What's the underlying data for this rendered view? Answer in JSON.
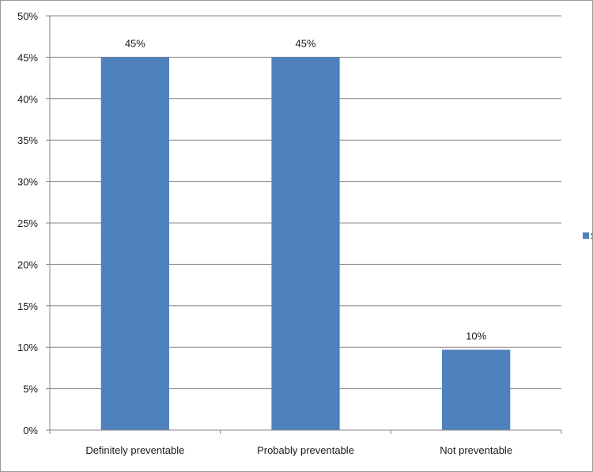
{
  "chart_data": {
    "type": "bar",
    "categories": [
      "Definitely preventable",
      "Probably preventable",
      "Not preventable"
    ],
    "series": [
      {
        "values": [
          45,
          45,
          9.7
        ]
      }
    ],
    "data_labels": [
      "45%",
      "45%",
      "10%"
    ],
    "y_ticks": [
      "0%",
      "5%",
      "10%",
      "15%",
      "20%",
      "25%",
      "30%",
      "35%",
      "40%",
      "45%",
      "50%"
    ],
    "ylim": [
      0,
      50
    ],
    "grid": true,
    "legend": {
      "position": "right",
      "text": "S"
    },
    "colors": {
      "bar": "#4f81bd",
      "grid": "#868686",
      "axis": "#868686"
    }
  }
}
